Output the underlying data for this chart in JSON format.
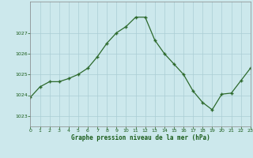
{
  "hours": [
    0,
    1,
    2,
    3,
    4,
    5,
    6,
    7,
    8,
    9,
    10,
    11,
    12,
    13,
    14,
    15,
    16,
    17,
    18,
    19,
    20,
    21,
    22,
    23
  ],
  "pressure": [
    1023.9,
    1024.4,
    1024.65,
    1024.65,
    1024.8,
    1025.0,
    1025.3,
    1025.85,
    1026.5,
    1027.0,
    1027.3,
    1027.75,
    1027.75,
    1026.65,
    1026.0,
    1025.5,
    1025.0,
    1024.2,
    1023.65,
    1023.3,
    1024.05,
    1024.1,
    1024.7,
    1025.3
  ],
  "line_color": "#2d6a2d",
  "marker_color": "#2d6a2d",
  "bg_color": "#cce8ec",
  "grid_color_major": "#aacdd4",
  "grid_color_minor": "#aacdd4",
  "xlabel": "Graphe pression niveau de la mer (hPa)",
  "xlabel_color": "#1a5c1a",
  "tick_color": "#1a5c1a",
  "ylim": [
    1022.5,
    1028.5
  ],
  "yticks": [
    1023,
    1024,
    1025,
    1026,
    1027
  ],
  "xlim": [
    0,
    23
  ],
  "xticks": [
    0,
    1,
    2,
    3,
    4,
    5,
    6,
    7,
    8,
    9,
    10,
    11,
    12,
    13,
    14,
    15,
    16,
    17,
    18,
    19,
    20,
    21,
    22,
    23
  ]
}
